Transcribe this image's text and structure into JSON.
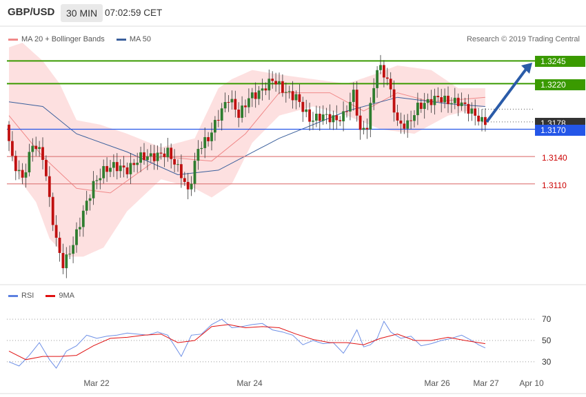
{
  "header": {
    "symbol": "GBP/USD",
    "timeframe": "30 MIN",
    "time": "07:02:59 CET"
  },
  "legend": {
    "bb_label": "MA 20 + Bollinger Bands",
    "ma50_label": "MA 50",
    "copyright": "Research © 2019 Trading Central"
  },
  "rsi_legend": {
    "rsi_label": "RSI",
    "ma_label": "9MA"
  },
  "colors": {
    "green": "#3a9a00",
    "blue": "#2456e8",
    "red": "#e08080",
    "dark": "#333333",
    "bollinger": "#fde0e0",
    "ma20": "#f08888",
    "ma50": "#3a5f9c",
    "bull": "#2f7d2f",
    "bear": "#c01010"
  },
  "levels": {
    "r2": {
      "text": "1.3245",
      "value": 1.3245
    },
    "r1": {
      "text": "1.3220",
      "value": 1.322
    },
    "last": {
      "text": "1.3178",
      "value": 1.3178
    },
    "pivot": {
      "text": "1.3170",
      "value": 1.317
    },
    "s1": {
      "text": "1.3140",
      "value": 1.314
    },
    "s2": {
      "text": "1.3110",
      "value": 1.311
    }
  },
  "chart_data": [
    {
      "type": "candlestick",
      "ylim": [
        1.3,
        1.3265
      ],
      "x_ticks": [
        "Mar 22",
        "Mar 24",
        "Mar 26",
        "Mar 27",
        "Apr 10"
      ],
      "anchors": [
        [
          0,
          1.3175
        ],
        [
          2,
          1.3135
        ],
        [
          5,
          1.3115
        ],
        [
          8,
          1.3155
        ],
        [
          11,
          1.314
        ],
        [
          13,
          1.309
        ],
        [
          15,
          1.3045
        ],
        [
          17,
          1.302
        ],
        [
          20,
          1.3045
        ],
        [
          23,
          1.308
        ],
        [
          26,
          1.311
        ],
        [
          29,
          1.3125
        ],
        [
          32,
          1.313
        ],
        [
          36,
          1.3125
        ],
        [
          40,
          1.314
        ],
        [
          44,
          1.314
        ],
        [
          48,
          1.3145
        ],
        [
          52,
          1.312
        ],
        [
          54,
          1.31
        ],
        [
          57,
          1.315
        ],
        [
          60,
          1.316
        ],
        [
          63,
          1.3185
        ],
        [
          66,
          1.3205
        ],
        [
          69,
          1.3185
        ],
        [
          72,
          1.3205
        ],
        [
          75,
          1.321
        ],
        [
          79,
          1.3225
        ],
        [
          83,
          1.321
        ],
        [
          86,
          1.3205
        ],
        [
          90,
          1.318
        ],
        [
          94,
          1.3185
        ],
        [
          98,
          1.318
        ],
        [
          100,
          1.3185
        ],
        [
          103,
          1.321
        ],
        [
          105,
          1.3165
        ],
        [
          107,
          1.3175
        ],
        [
          110,
          1.324
        ],
        [
          113,
          1.3225
        ],
        [
          116,
          1.3175
        ],
        [
          119,
          1.3175
        ],
        [
          122,
          1.3195
        ],
        [
          125,
          1.32
        ],
        [
          128,
          1.3205
        ],
        [
          131,
          1.32
        ],
        [
          134,
          1.32
        ],
        [
          136,
          1.3195
        ],
        [
          139,
          1.3185
        ],
        [
          141,
          1.3178
        ]
      ],
      "ma50": [
        [
          0,
          1.32
        ],
        [
          10,
          1.3195
        ],
        [
          20,
          1.3165
        ],
        [
          35,
          1.3145
        ],
        [
          50,
          1.312
        ],
        [
          62,
          1.3125
        ],
        [
          80,
          1.316
        ],
        [
          100,
          1.319
        ],
        [
          115,
          1.3205
        ],
        [
          130,
          1.3198
        ],
        [
          141,
          1.3195
        ]
      ],
      "ma20": [
        [
          0,
          1.3185
        ],
        [
          10,
          1.314
        ],
        [
          20,
          1.3105
        ],
        [
          30,
          1.31
        ],
        [
          45,
          1.314
        ],
        [
          60,
          1.3135
        ],
        [
          70,
          1.3165
        ],
        [
          80,
          1.321
        ],
        [
          95,
          1.321
        ],
        [
          105,
          1.319
        ],
        [
          115,
          1.321
        ],
        [
          125,
          1.32
        ],
        [
          141,
          1.3205
        ]
      ],
      "bb_upper": [
        [
          0,
          1.326
        ],
        [
          4,
          1.3265
        ],
        [
          10,
          1.3245
        ],
        [
          15,
          1.322
        ],
        [
          20,
          1.318
        ],
        [
          27,
          1.3175
        ],
        [
          35,
          1.3165
        ],
        [
          45,
          1.315
        ],
        [
          55,
          1.316
        ],
        [
          62,
          1.3215
        ],
        [
          66,
          1.3225
        ],
        [
          72,
          1.3235
        ],
        [
          80,
          1.323
        ],
        [
          90,
          1.3225
        ],
        [
          100,
          1.322
        ],
        [
          108,
          1.323
        ],
        [
          115,
          1.324
        ],
        [
          125,
          1.3235
        ],
        [
          133,
          1.3215
        ],
        [
          141,
          1.3215
        ]
      ],
      "bb_lower": [
        [
          0,
          1.3145
        ],
        [
          4,
          1.311
        ],
        [
          8,
          1.309
        ],
        [
          12,
          1.305
        ],
        [
          17,
          1.303
        ],
        [
          22,
          1.303
        ],
        [
          28,
          1.304
        ],
        [
          35,
          1.308
        ],
        [
          45,
          1.3115
        ],
        [
          55,
          1.3105
        ],
        [
          60,
          1.3095
        ],
        [
          66,
          1.311
        ],
        [
          72,
          1.3155
        ],
        [
          80,
          1.3185
        ],
        [
          90,
          1.3195
        ],
        [
          100,
          1.3185
        ],
        [
          110,
          1.317
        ],
        [
          120,
          1.3165
        ],
        [
          130,
          1.3185
        ],
        [
          141,
          1.3195
        ]
      ]
    },
    {
      "type": "line",
      "ylim": [
        15,
        85
      ],
      "y_ticks": [
        30,
        50,
        70
      ],
      "rsi": [
        [
          0,
          30
        ],
        [
          3,
          26
        ],
        [
          6,
          36
        ],
        [
          9,
          48
        ],
        [
          12,
          32
        ],
        [
          14,
          24
        ],
        [
          17,
          40
        ],
        [
          20,
          45
        ],
        [
          23,
          55
        ],
        [
          26,
          52
        ],
        [
          29,
          54
        ],
        [
          32,
          55
        ],
        [
          35,
          57
        ],
        [
          38,
          56
        ],
        [
          41,
          55
        ],
        [
          44,
          58
        ],
        [
          47,
          55
        ],
        [
          50,
          40
        ],
        [
          51,
          35
        ],
        [
          54,
          55
        ],
        [
          57,
          56
        ],
        [
          60,
          65
        ],
        [
          63,
          70
        ],
        [
          66,
          62
        ],
        [
          69,
          63
        ],
        [
          72,
          65
        ],
        [
          75,
          66
        ],
        [
          78,
          60
        ],
        [
          81,
          58
        ],
        [
          84,
          55
        ],
        [
          87,
          46
        ],
        [
          90,
          50
        ],
        [
          93,
          47
        ],
        [
          96,
          48
        ],
        [
          99,
          38
        ],
        [
          101,
          48
        ],
        [
          103,
          60
        ],
        [
          105,
          44
        ],
        [
          107,
          46
        ],
        [
          109,
          52
        ],
        [
          111,
          68
        ],
        [
          113,
          58
        ],
        [
          116,
          52
        ],
        [
          119,
          54
        ],
        [
          122,
          45
        ],
        [
          125,
          47
        ],
        [
          128,
          50
        ],
        [
          131,
          52
        ],
        [
          134,
          55
        ],
        [
          137,
          50
        ],
        [
          139,
          46
        ],
        [
          141,
          43
        ]
      ],
      "ma9": [
        [
          0,
          40
        ],
        [
          5,
          32
        ],
        [
          10,
          35
        ],
        [
          15,
          35
        ],
        [
          20,
          36
        ],
        [
          25,
          45
        ],
        [
          30,
          52
        ],
        [
          35,
          53
        ],
        [
          40,
          55
        ],
        [
          45,
          56
        ],
        [
          50,
          48
        ],
        [
          55,
          50
        ],
        [
          60,
          63
        ],
        [
          65,
          65
        ],
        [
          70,
          62
        ],
        [
          75,
          63
        ],
        [
          80,
          62
        ],
        [
          85,
          56
        ],
        [
          90,
          51
        ],
        [
          95,
          48
        ],
        [
          100,
          48
        ],
        [
          105,
          46
        ],
        [
          110,
          52
        ],
        [
          115,
          56
        ],
        [
          120,
          50
        ],
        [
          125,
          50
        ],
        [
          130,
          53
        ],
        [
          135,
          50
        ],
        [
          141,
          47
        ]
      ]
    }
  ]
}
